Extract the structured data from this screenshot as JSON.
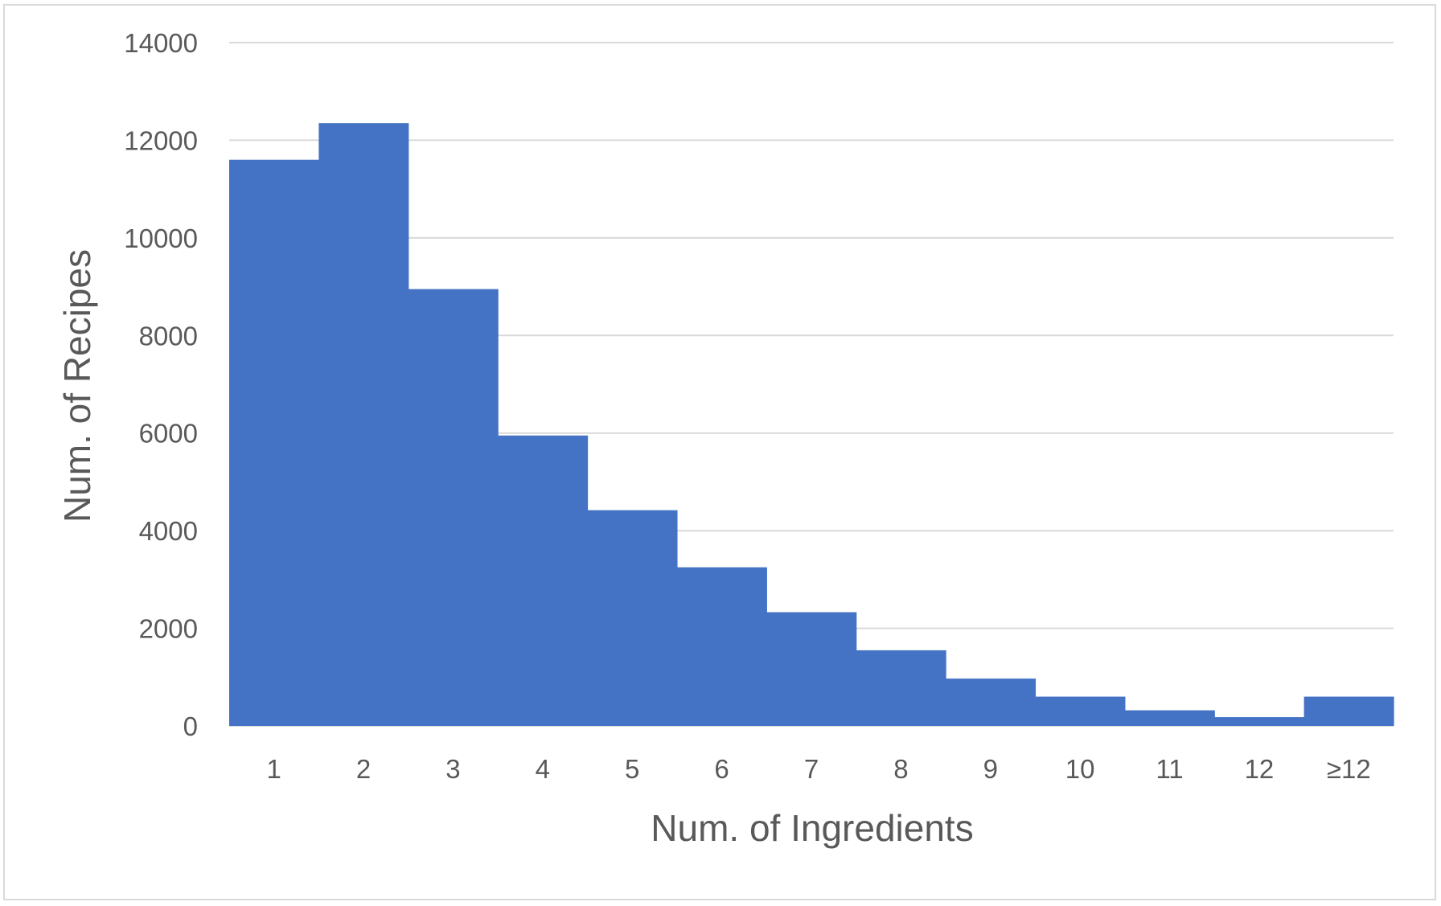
{
  "chart_data": {
    "type": "bar",
    "title": "",
    "xlabel": "Num. of Ingredients",
    "ylabel": "Num. of Recipes",
    "categories": [
      "1",
      "2",
      "3",
      "4",
      "5",
      "6",
      "7",
      "8",
      "9",
      "10",
      "11",
      "12",
      "≥12"
    ],
    "values": [
      11600,
      12350,
      8950,
      5950,
      4420,
      3250,
      2330,
      1550,
      970,
      600,
      320,
      180,
      600
    ],
    "ylim": [
      0,
      14000
    ],
    "yticks": [
      "0",
      "2000",
      "4000",
      "6000",
      "8000",
      "10000",
      "12000",
      "14000"
    ],
    "grid": true,
    "legend": "none",
    "bar_color": "#4472c4",
    "grid_color": "#d9d9d9"
  }
}
